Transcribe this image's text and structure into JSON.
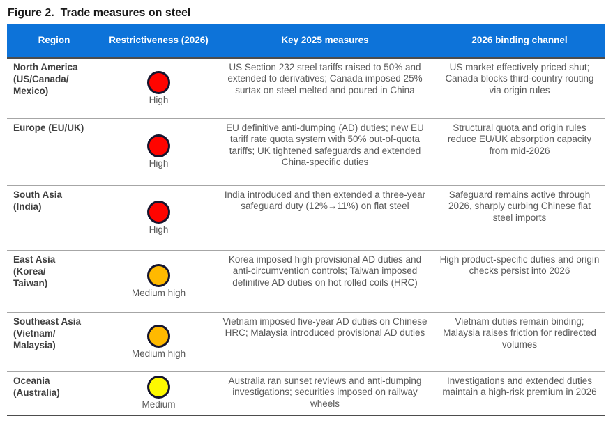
{
  "title": "Figure 2.  Trade measures on steel",
  "colors": {
    "header_bg": "#0d73d9",
    "header_text": "#ffffff",
    "level_high": "#ff0400",
    "level_medium_high": "#ffb900",
    "level_medium": "#fdf800",
    "circle_border": "#15152e",
    "body_text": "#595959",
    "rule_dark": "#4d4d4d",
    "rule_light": "#a6a6a6"
  },
  "table": {
    "headers": [
      "Region",
      "Restrictiveness (2026)",
      "Key 2025 measures",
      "2026 binding channel"
    ],
    "rows": [
      {
        "region": "North America\n(US/Canada/\nMexico)",
        "level": "High",
        "measures": "US Section 232 steel tariffs raised to 50% and extended to derivatives; Canada imposed 25% surtax on steel melted and poured in China",
        "channel": "US market effectively priced shut; Canada blocks third-country routing via origin rules"
      },
      {
        "region": "Europe (EU/UK)",
        "level": "High",
        "measures": "EU definitive anti-dumping (AD) duties; new EU tariff rate quota system with 50% out-of-quota tariffs; UK tightened safeguards and extended China-specific duties",
        "channel": "Structural quota and origin rules reduce EU/UK absorption capacity from mid-2026"
      },
      {
        "region": "South Asia\n(India)",
        "level": "High",
        "measures": "India introduced and then extended a three-year safeguard duty (12%→11%) on flat steel",
        "channel": "Safeguard remains active through 2026, sharply curbing Chinese flat steel imports"
      },
      {
        "region": "East Asia\n(Korea/\nTaiwan)",
        "level": "Medium high",
        "measures": "Korea imposed high provisional AD duties and anti-circumvention controls; Taiwan imposed definitive AD duties on hot rolled coils (HRC)",
        "channel": "High product-specific duties and origin checks persist into 2026"
      },
      {
        "region": "Southeast Asia\n(Vietnam/\nMalaysia)",
        "level": "Medium high",
        "measures": "Vietnam imposed five-year AD duties on Chinese HRC; Malaysia introduced provisional AD duties",
        "channel": "Vietnam duties remain binding; Malaysia raises friction for redirected volumes"
      },
      {
        "region": "Oceania\n(Australia)",
        "level": "Medium",
        "measures": "Australia ran sunset reviews and anti-dumping investigations; securities imposed on railway wheels",
        "channel": "Investigations and extended duties maintain a high-risk premium in 2026"
      }
    ]
  }
}
